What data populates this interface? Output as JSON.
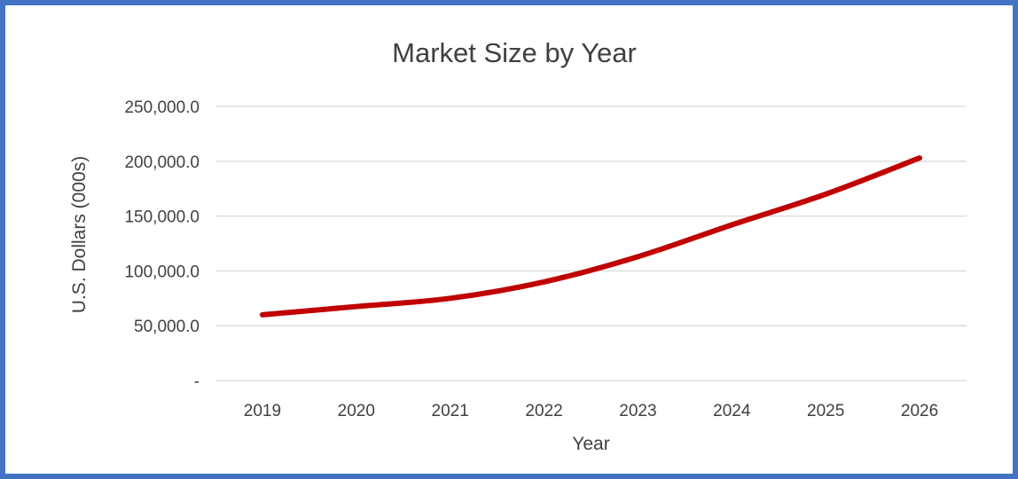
{
  "chart_data": {
    "type": "line",
    "title": "Market Size by Year",
    "xlabel": "Year",
    "ylabel": "U.S. Dollars (000s)",
    "categories": [
      "2019",
      "2020",
      "2021",
      "2022",
      "2023",
      "2024",
      "2025",
      "2026"
    ],
    "series": [
      {
        "values": [
          60000,
          67500,
          75000,
          90000,
          113000,
          142000,
          170000,
          203000
        ],
        "color": "#C00000"
      }
    ],
    "ylim": [
      0,
      250000
    ],
    "yticks": [
      0,
      50000,
      100000,
      150000,
      200000,
      250000
    ],
    "ytick_labels": [
      "-",
      "50,000.0",
      "100,000.0",
      "150,000.0",
      "200,000.0",
      "250,000.0"
    ],
    "grid": true,
    "legend": "none",
    "gridline_color": "#D9D9D9",
    "border_color": "#4472C4"
  }
}
